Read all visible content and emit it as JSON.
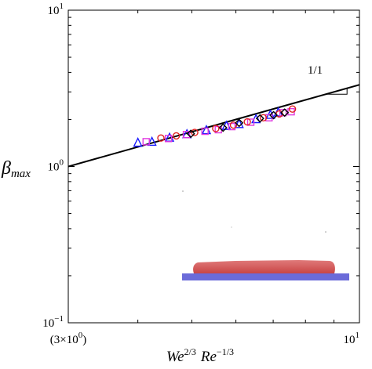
{
  "chart_data": {
    "type": "scatter",
    "xscale": "log",
    "yscale": "log",
    "xlim": [
      3,
      10
    ],
    "ylim": [
      0.1,
      10
    ],
    "x_ticks": [
      {
        "value": 3,
        "base": "(3×10",
        "exp": "0",
        "tail": ")"
      },
      {
        "value": 10,
        "base": "10",
        "exp": "1",
        "tail": ""
      }
    ],
    "y_ticks": [
      {
        "value": 0.1,
        "base": "10",
        "exp": "−1"
      },
      {
        "value": 1,
        "base": "10",
        "exp": "0"
      },
      {
        "value": 10,
        "base": "10",
        "exp": "1"
      }
    ],
    "xlabel": {
      "We": "We",
      "We_exp": "2/3",
      "Re": "Re",
      "Re_exp": "−1/3"
    },
    "ylabel": {
      "main": "β",
      "sub": "max"
    },
    "fit_line": {
      "x": [
        3,
        10
      ],
      "y": [
        1.0,
        3.333
      ]
    },
    "slope_annotation": {
      "text": "1/1",
      "triangle": {
        "x": [
          8.72,
          9.5
        ],
        "y": [
          2.9,
          3.17
        ]
      }
    },
    "series": [
      {
        "marker": "triangle",
        "color": "#1a1aff",
        "points": [
          {
            "x": 4.0,
            "y": 1.42
          },
          {
            "x": 4.24,
            "y": 1.44
          },
          {
            "x": 4.56,
            "y": 1.53
          },
          {
            "x": 4.9,
            "y": 1.61
          },
          {
            "x": 5.31,
            "y": 1.71
          },
          {
            "x": 5.77,
            "y": 1.82
          },
          {
            "x": 6.08,
            "y": 1.87
          },
          {
            "x": 6.52,
            "y": 2.01
          },
          {
            "x": 6.92,
            "y": 2.14
          },
          {
            "x": 7.15,
            "y": 2.22
          }
        ]
      },
      {
        "marker": "square",
        "color": "#e038e0",
        "points": [
          {
            "x": 4.14,
            "y": 1.44
          },
          {
            "x": 4.54,
            "y": 1.51
          },
          {
            "x": 4.89,
            "y": 1.6
          },
          {
            "x": 5.28,
            "y": 1.68
          },
          {
            "x": 5.58,
            "y": 1.72
          },
          {
            "x": 5.9,
            "y": 1.8
          },
          {
            "x": 6.38,
            "y": 1.92
          },
          {
            "x": 6.88,
            "y": 2.05
          },
          {
            "x": 7.29,
            "y": 2.21
          },
          {
            "x": 7.54,
            "y": 2.24
          }
        ]
      },
      {
        "marker": "circle",
        "color": "#e02020",
        "points": [
          {
            "x": 4.4,
            "y": 1.52
          },
          {
            "x": 4.69,
            "y": 1.57
          },
          {
            "x": 5.06,
            "y": 1.65
          },
          {
            "x": 5.52,
            "y": 1.75
          },
          {
            "x": 5.94,
            "y": 1.84
          },
          {
            "x": 6.29,
            "y": 1.93
          },
          {
            "x": 6.72,
            "y": 2.05
          },
          {
            "x": 7.18,
            "y": 2.17
          },
          {
            "x": 7.58,
            "y": 2.33
          }
        ]
      },
      {
        "marker": "diamond",
        "color": "#000000",
        "points": [
          {
            "x": 4.98,
            "y": 1.62
          },
          {
            "x": 5.69,
            "y": 1.77
          },
          {
            "x": 6.08,
            "y": 1.9
          },
          {
            "x": 6.63,
            "y": 2.03
          },
          {
            "x": 7.01,
            "y": 2.13
          },
          {
            "x": 7.34,
            "y": 2.21
          }
        ]
      }
    ],
    "inset_image": {
      "drop_color": "#d94c4c",
      "substrate_color": "#6b6bd9"
    },
    "grid": false,
    "legend": "none"
  }
}
